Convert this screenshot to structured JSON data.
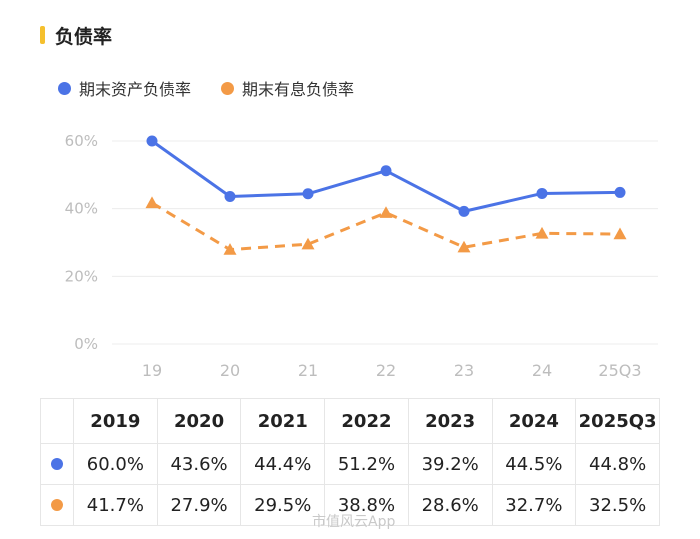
{
  "title": "负债率",
  "colors": {
    "total": "#4b73e6",
    "interest": "#f39a46",
    "accent": "#f5c02e"
  },
  "chart_data": {
    "type": "line",
    "categories": [
      "19",
      "20",
      "21",
      "22",
      "23",
      "24",
      "25Q3"
    ],
    "ylim": [
      0,
      60
    ],
    "yticks": [
      "0%",
      "20%",
      "40%",
      "60%"
    ],
    "ytick_values": [
      0,
      20,
      40,
      60
    ],
    "series": [
      {
        "name": "期末资产负债率",
        "values": [
          60.0,
          43.6,
          44.4,
          51.2,
          39.2,
          44.5,
          44.8
        ],
        "style": "solid",
        "marker": "circle"
      },
      {
        "name": "期末有息负债率",
        "values": [
          41.7,
          27.9,
          29.5,
          38.8,
          28.6,
          32.7,
          32.5
        ],
        "style": "dashed",
        "marker": "triangle"
      }
    ],
    "grid": true
  },
  "table": {
    "headers": [
      "2019",
      "2020",
      "2021",
      "2022",
      "2023",
      "2024",
      "2025Q3"
    ],
    "rows": [
      [
        "60.0%",
        "43.6%",
        "44.4%",
        "51.2%",
        "39.2%",
        "44.5%",
        "44.8%"
      ],
      [
        "41.7%",
        "27.9%",
        "29.5%",
        "38.8%",
        "28.6%",
        "32.7%",
        "32.5%"
      ]
    ]
  },
  "watermark": "市值风云App"
}
